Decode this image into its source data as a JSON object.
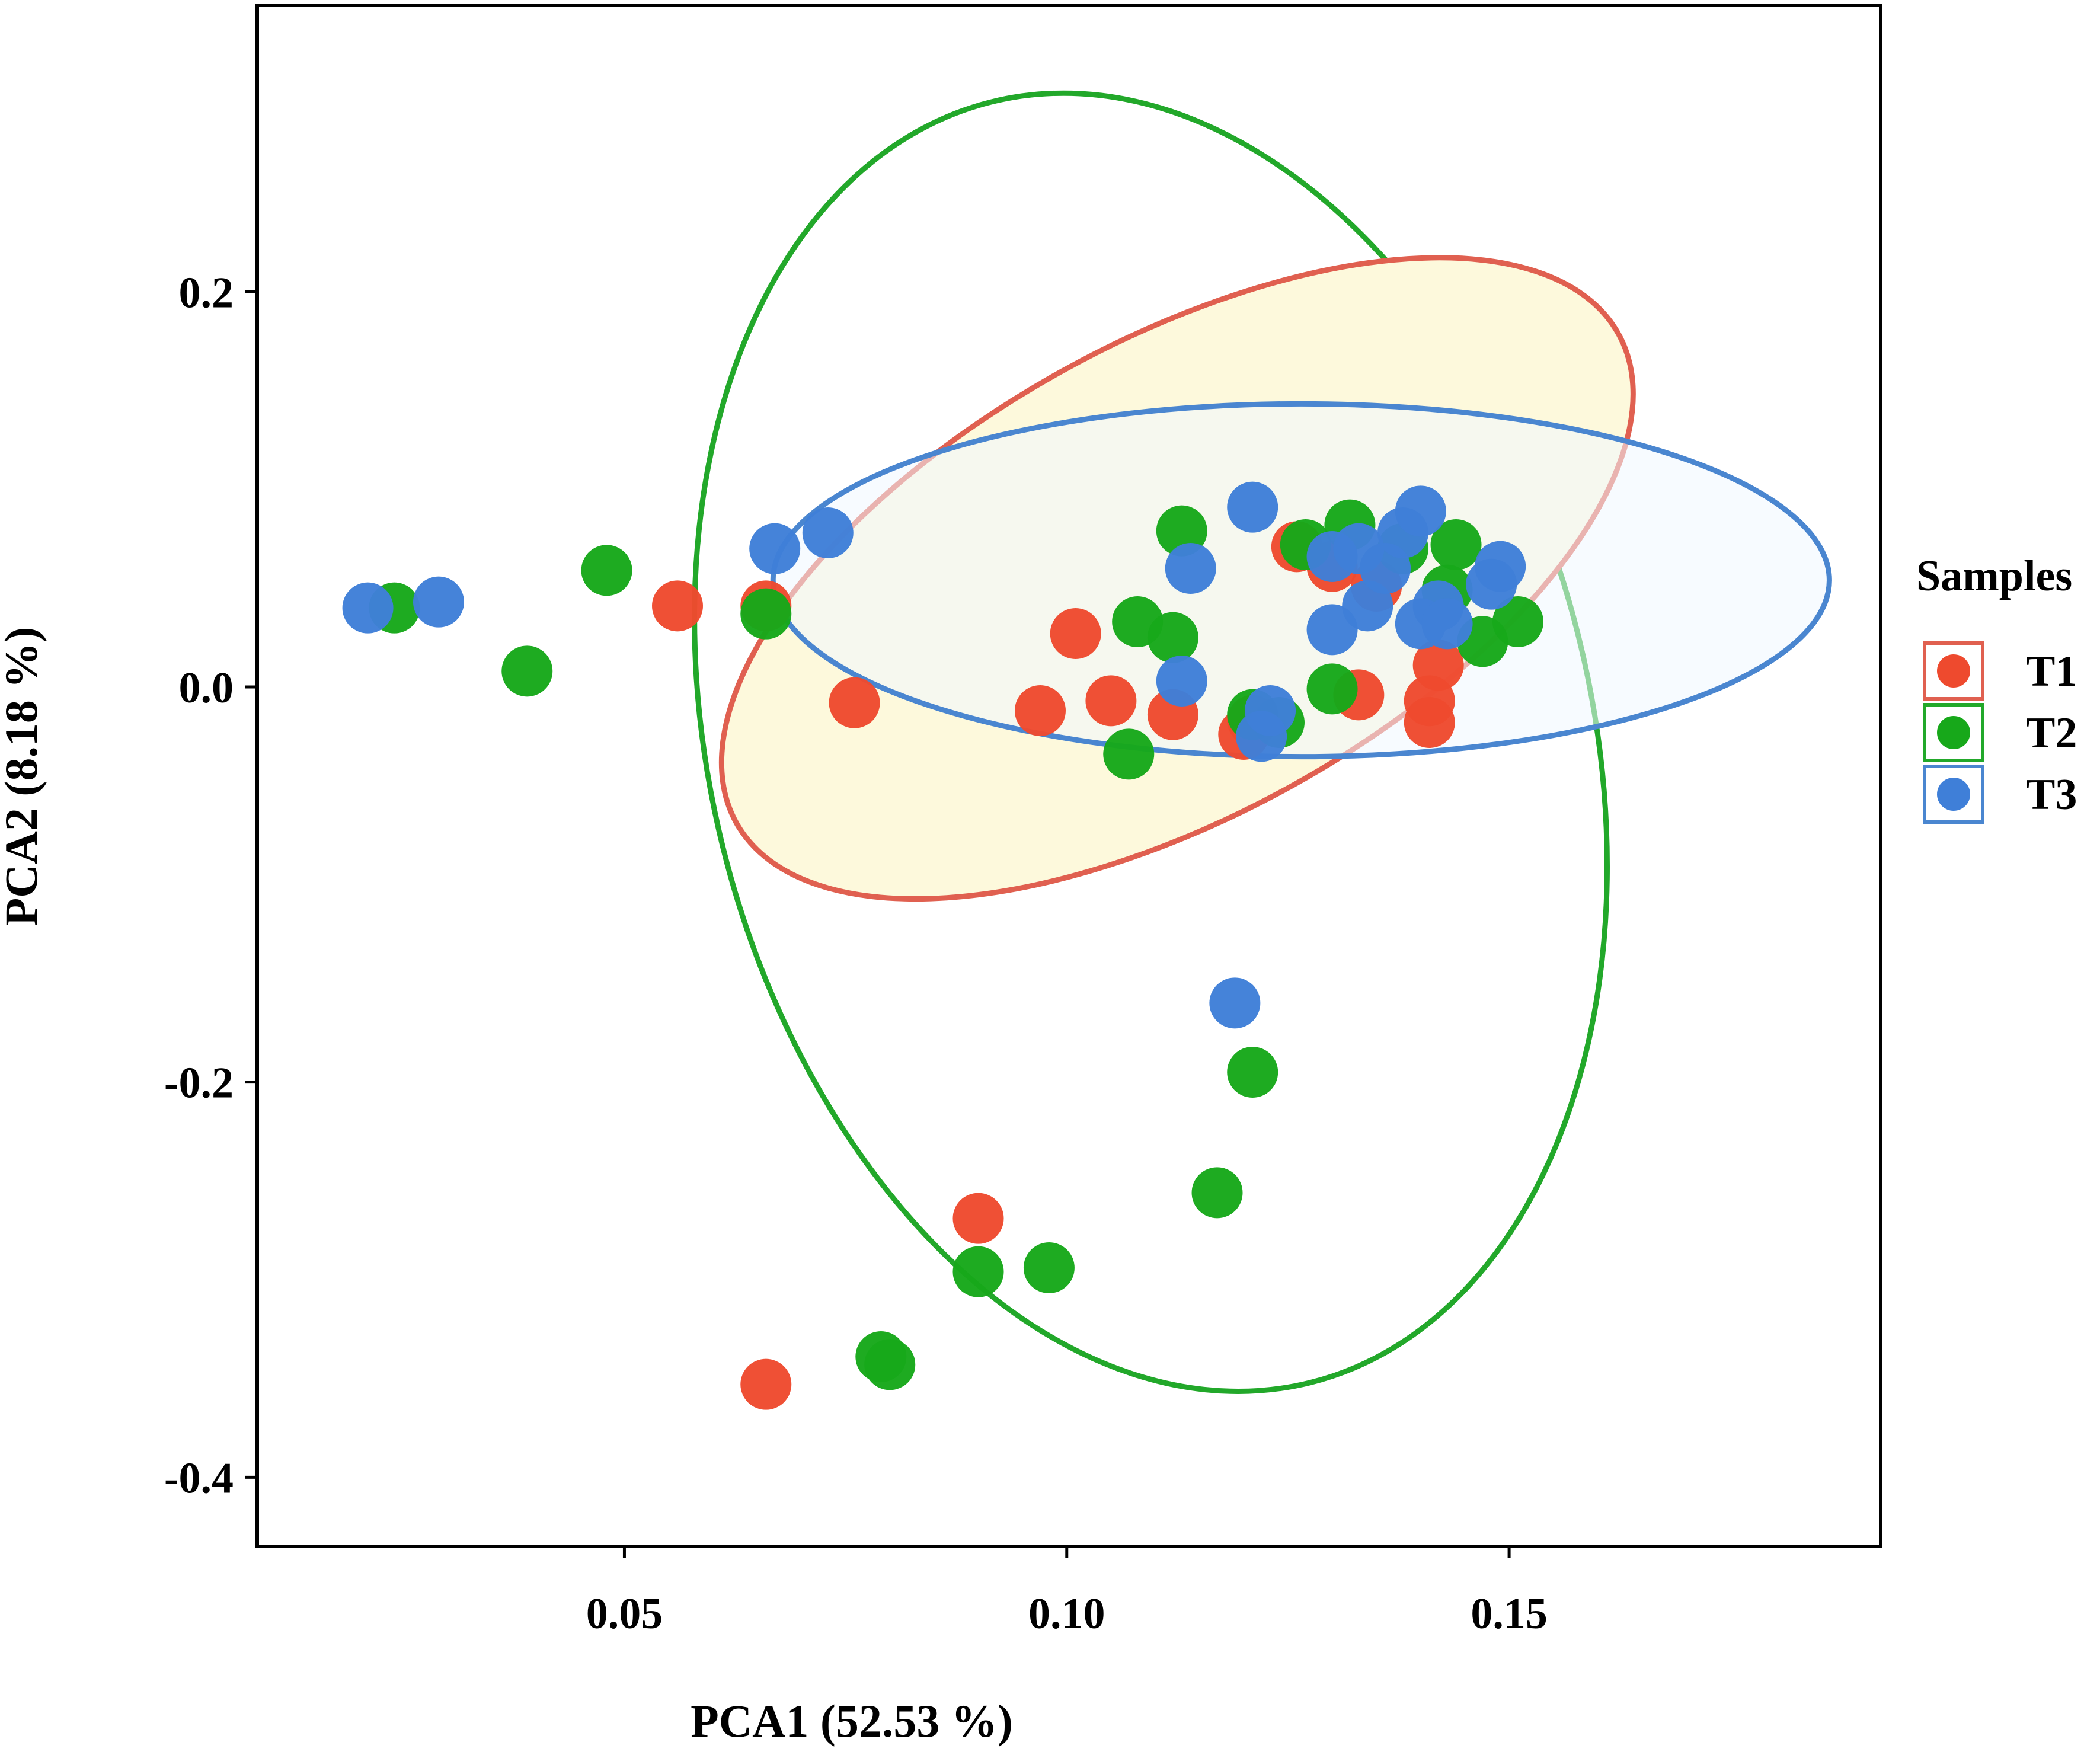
{
  "chart_data": {
    "type": "scatter",
    "title": "",
    "xlabel": "PCA1 (52.53 %)",
    "ylabel": "PCA2  (8.18 %)",
    "xlim": [
      0.0085,
      0.192
    ],
    "ylim": [
      -0.435,
      0.345
    ],
    "xticks": [
      0.05,
      0.1,
      0.15
    ],
    "xtick_labels": [
      "0.05",
      "0.10",
      "0.15"
    ],
    "yticks": [
      0.2,
      0.0,
      -0.2,
      -0.4
    ],
    "ytick_labels": [
      "0.2",
      "0.0",
      "-0.2",
      "-0.4"
    ],
    "grid": false,
    "legend": {
      "title": "Samples",
      "position": "right",
      "entries": [
        "T1",
        "T2",
        "T3"
      ]
    },
    "colors": {
      "T1": "#ee4a2e",
      "T2": "#17a81a",
      "T3": "#3f7fd8",
      "T1_ellipse_fill": "#fdf9dc",
      "T1_ellipse_stroke": "#e06050",
      "T2_ellipse_stroke": "#22a82a",
      "T3_ellipse_stroke": "#4a86d0",
      "T3_ellipse_fill": "#f0f8ff"
    },
    "ellipses": [
      {
        "series": "T1",
        "cx": 0.1125,
        "cy": 0.055,
        "rx": 0.057,
        "ry": 0.12,
        "angle_deg": -29
      },
      {
        "series": "T2",
        "cx": 0.1095,
        "cy": -0.028,
        "rx": 0.0498,
        "ry": 0.334,
        "angle_deg": -14
      },
      {
        "series": "T3",
        "cx": 0.1265,
        "cy": 0.054,
        "rx": 0.0597,
        "ry": 0.0893,
        "angle_deg": 0
      }
    ],
    "series": [
      {
        "name": "T1",
        "points": [
          [
            0.056,
            0.041
          ],
          [
            0.066,
            0.041
          ],
          [
            0.076,
            -0.008
          ],
          [
            0.097,
            -0.012
          ],
          [
            0.101,
            0.027
          ],
          [
            0.105,
            -0.007
          ],
          [
            0.112,
            -0.014
          ],
          [
            0.12,
            -0.024
          ],
          [
            0.121,
            -0.017
          ],
          [
            0.126,
            0.071
          ],
          [
            0.13,
            0.061
          ],
          [
            0.133,
            -0.004
          ],
          [
            0.135,
            0.051
          ],
          [
            0.141,
            -0.007
          ],
          [
            0.141,
            -0.018
          ],
          [
            0.142,
            0.011
          ],
          [
            0.09,
            -0.269
          ],
          [
            0.066,
            -0.353
          ]
        ]
      },
      {
        "name": "T2",
        "points": [
          [
            0.024,
            0.04
          ],
          [
            0.039,
            0.008
          ],
          [
            0.048,
            0.059
          ],
          [
            0.066,
            0.037
          ],
          [
            0.107,
            -0.034
          ],
          [
            0.108,
            0.033
          ],
          [
            0.112,
            0.025
          ],
          [
            0.113,
            0.079
          ],
          [
            0.121,
            -0.014
          ],
          [
            0.124,
            -0.018
          ],
          [
            0.127,
            0.072
          ],
          [
            0.13,
            -0.001
          ],
          [
            0.132,
            0.082
          ],
          [
            0.138,
            0.07
          ],
          [
            0.143,
            0.049
          ],
          [
            0.144,
            0.072
          ],
          [
            0.147,
            0.023
          ],
          [
            0.151,
            0.033
          ],
          [
            0.121,
            -0.195
          ],
          [
            0.117,
            -0.256
          ],
          [
            0.09,
            -0.296
          ],
          [
            0.098,
            -0.294
          ],
          [
            0.079,
            -0.339
          ],
          [
            0.08,
            -0.343
          ]
        ]
      },
      {
        "name": "T3",
        "points": [
          [
            0.021,
            0.04
          ],
          [
            0.029,
            0.043
          ],
          [
            0.067,
            0.07
          ],
          [
            0.073,
            0.078
          ],
          [
            0.114,
            0.06
          ],
          [
            0.113,
            0.003
          ],
          [
            0.121,
            0.091
          ],
          [
            0.122,
            -0.025
          ],
          [
            0.123,
            -0.012
          ],
          [
            0.13,
            0.066
          ],
          [
            0.13,
            0.029
          ],
          [
            0.133,
            0.07
          ],
          [
            0.134,
            0.041
          ],
          [
            0.136,
            0.06
          ],
          [
            0.138,
            0.078
          ],
          [
            0.14,
            0.089
          ],
          [
            0.14,
            0.032
          ],
          [
            0.142,
            0.041
          ],
          [
            0.143,
            0.032
          ],
          [
            0.148,
            0.052
          ],
          [
            0.149,
            0.061
          ],
          [
            0.119,
            -0.16
          ]
        ]
      }
    ]
  }
}
